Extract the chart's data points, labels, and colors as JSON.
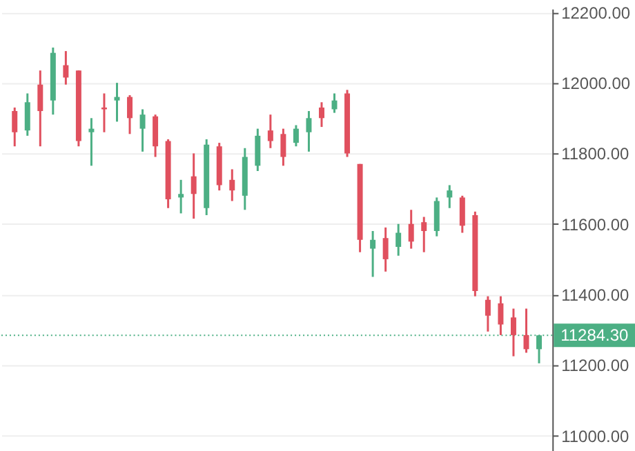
{
  "chart_data": {
    "type": "candlestick",
    "categories": [
      null,
      null,
      null,
      null,
      null,
      null,
      null,
      null,
      null,
      null,
      null,
      null,
      null,
      null,
      null,
      null,
      null,
      null,
      null,
      null,
      null,
      null,
      null,
      null,
      null,
      null,
      null,
      null,
      null,
      null,
      null,
      null,
      null,
      null,
      null,
      null,
      null,
      null,
      null,
      null,
      null,
      null
    ],
    "ohlc": [
      [
        11920,
        11930,
        11820,
        11860
      ],
      [
        11865,
        11970,
        11850,
        11945
      ],
      [
        11995,
        12035,
        11820,
        11920
      ],
      [
        11950,
        12100,
        11910,
        12085
      ],
      [
        12050,
        12090,
        11995,
        12015
      ],
      [
        12035,
        12035,
        11820,
        11835
      ],
      [
        11860,
        11900,
        11765,
        11870
      ],
      [
        11930,
        11970,
        11860,
        11925
      ],
      [
        11950,
        12000,
        11890,
        11960
      ],
      [
        11960,
        11965,
        11855,
        11900
      ],
      [
        11870,
        11925,
        11805,
        11910
      ],
      [
        11905,
        11910,
        11790,
        11820
      ],
      [
        11835,
        11840,
        11645,
        11670
      ],
      [
        11675,
        11725,
        11630,
        11685
      ],
      [
        11735,
        11800,
        11615,
        11685
      ],
      [
        11645,
        11840,
        11625,
        11825
      ],
      [
        11820,
        11830,
        11695,
        11710
      ],
      [
        11725,
        11755,
        11665,
        11695
      ],
      [
        11680,
        11815,
        11640,
        11790
      ],
      [
        11765,
        11870,
        11750,
        11850
      ],
      [
        11865,
        11910,
        11815,
        11835
      ],
      [
        11855,
        11870,
        11765,
        11790
      ],
      [
        11830,
        11880,
        11820,
        11870
      ],
      [
        11860,
        11920,
        11805,
        11900
      ],
      [
        11930,
        11945,
        11875,
        11900
      ],
      [
        11925,
        11970,
        11915,
        11950
      ],
      [
        11970,
        11980,
        11790,
        11800
      ],
      [
        11770,
        11770,
        11520,
        11555
      ],
      [
        11530,
        11580,
        11450,
        11555
      ],
      [
        11560,
        11590,
        11465,
        11500
      ],
      [
        11535,
        11600,
        11510,
        11575
      ],
      [
        11600,
        11640,
        11530,
        11550
      ],
      [
        11605,
        11620,
        11520,
        11580
      ],
      [
        11580,
        11675,
        11565,
        11665
      ],
      [
        11675,
        11710,
        11645,
        11695
      ],
      [
        11675,
        11680,
        11575,
        11595
      ],
      [
        11625,
        11635,
        11395,
        11410
      ],
      [
        11385,
        11395,
        11295,
        11340
      ],
      [
        11375,
        11395,
        11285,
        11315
      ],
      [
        11335,
        11360,
        11225,
        11285
      ],
      [
        11285,
        11360,
        11235,
        11245
      ],
      [
        11245,
        11285,
        11205,
        11284.3
      ]
    ],
    "colors": [
      "#e0505e",
      "#4caf84",
      "#e0505e",
      "#4caf84",
      "#e0505e",
      "#e0505e",
      "#4caf84",
      "#e0505e",
      "#4caf84",
      "#e0505e",
      "#4caf84",
      "#e0505e",
      "#e0505e",
      "#4caf84",
      "#e0505e",
      "#4caf84",
      "#e0505e",
      "#e0505e",
      "#4caf84",
      "#4caf84",
      "#e0505e",
      "#e0505e",
      "#4caf84",
      "#4caf84",
      "#e0505e",
      "#4caf84",
      "#e0505e",
      "#e0505e",
      "#4caf84",
      "#e0505e",
      "#4caf84",
      "#e0505e",
      "#e0505e",
      "#4caf84",
      "#4caf84",
      "#e0505e",
      "#e0505e",
      "#e0505e",
      "#e0505e",
      "#e0505e",
      "#e0505e",
      "#4caf84"
    ],
    "ylim": [
      10950,
      12210
    ],
    "yticks": [
      {
        "value": 11000,
        "label": "11000.00"
      },
      {
        "value": 11200,
        "label": "11200.00"
      },
      {
        "value": 11400,
        "label": "11400.00"
      },
      {
        "value": 11600,
        "label": "11600.00"
      },
      {
        "value": 11800,
        "label": "11800.00"
      },
      {
        "value": 12000,
        "label": "12000.00"
      },
      {
        "value": 12200,
        "label": "12200.00"
      }
    ],
    "ref_lines": [
      {
        "axis": "y",
        "value": 11284.3,
        "label": "11284.30",
        "color": "#4caf84",
        "line_style": "dotted"
      }
    ],
    "grid": "y",
    "tick_labels": "y"
  }
}
